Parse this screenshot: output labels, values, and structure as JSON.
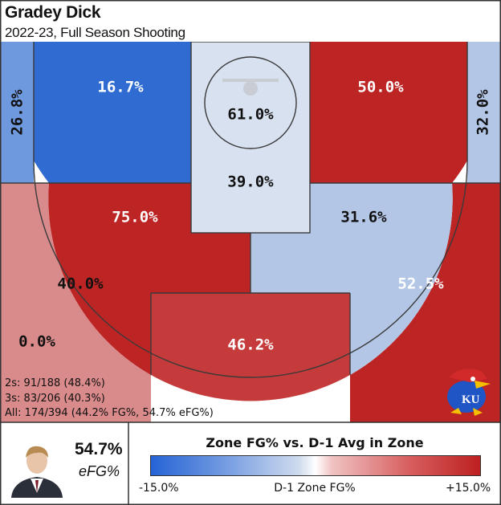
{
  "header": {
    "title": "Gradey Dick",
    "subtitle": "2022-23, Full Season Shooting"
  },
  "chart_data": {
    "type": "heatmap",
    "title": "Gradey Dick",
    "subtitle": "2022-23, Full Season Shooting",
    "zones": [
      {
        "id": "left-corner-three",
        "label": "26.8%",
        "fg_pct": 26.8,
        "color": "#6f99de"
      },
      {
        "id": "left-short-baseline",
        "label": "16.7%",
        "fg_pct": 16.7,
        "color": "#2f6bd1"
      },
      {
        "id": "restricted-area",
        "label": "61.0%",
        "fg_pct": 61.0,
        "color": "#d8e1ef"
      },
      {
        "id": "paint",
        "label": "39.0%",
        "fg_pct": 39.0,
        "color": "#d8e1ef"
      },
      {
        "id": "right-short-baseline",
        "label": "50.0%",
        "fg_pct": 50.0,
        "color": "#bd2424"
      },
      {
        "id": "right-corner-three",
        "label": "32.0%",
        "fg_pct": 32.0,
        "color": "#b3c6e6"
      },
      {
        "id": "left-elbow-mid",
        "label": "75.0%",
        "fg_pct": 75.0,
        "color": "#bd2424"
      },
      {
        "id": "right-elbow-mid",
        "label": "31.6%",
        "fg_pct": 31.6,
        "color": "#b3c6e6"
      },
      {
        "id": "left-wing-three",
        "label": "40.0%",
        "fg_pct": 40.0,
        "color": "#d98a8a"
      },
      {
        "id": "top-mid",
        "label": "46.2%",
        "fg_pct": 46.2,
        "color": "#c53b3b"
      },
      {
        "id": "right-wing-three",
        "label": "52.5%",
        "fg_pct": 52.5,
        "color": "#bd2424"
      },
      {
        "id": "backcourt",
        "label": "0.0%",
        "fg_pct": 0.0,
        "color": "#ffffff"
      }
    ],
    "legend": {
      "title": "Zone FG% vs. D-1 Avg in Zone",
      "min_label": "-15.0%",
      "max_label": "+15.0%",
      "axis_label": "D-1 Zone FG%",
      "range": [
        -15.0,
        15.0
      ],
      "colors": [
        "#2563d6",
        "#ffffff",
        "#bd2020"
      ]
    }
  },
  "stats": {
    "twos": "2s: 91/188 (48.4%)",
    "threes": "3s: 83/206 (40.3%)",
    "all": "All: 174/394 (44.2% FG%, 54.7% eFG%)"
  },
  "player_card": {
    "efg_value": "54.7%",
    "efg_label": "eFG%"
  },
  "logo_text": "KU"
}
